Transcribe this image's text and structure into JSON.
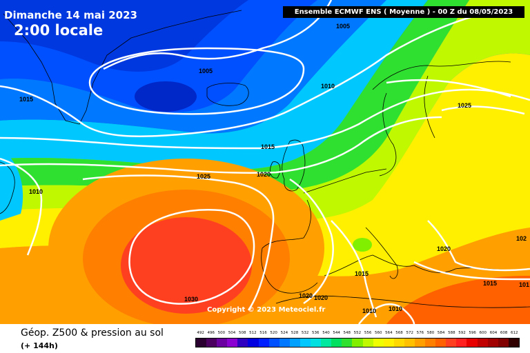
{
  "header": {
    "date_line": "Dimanche 14 mai 2023",
    "time_line": "2:00 locale",
    "model_banner": "Ensemble ECMWF ENS  ( Moyenne )  -  00 Z du 08/05/2023"
  },
  "copyright": "Copyright © 2023 Meteociel.fr",
  "footer": {
    "product_title": "Géop. Z500 & pression au sol",
    "forecast_hour": "(+ 144h)"
  },
  "legend": {
    "labels": [
      "492",
      "496",
      "500",
      "504",
      "508",
      "512",
      "516",
      "520",
      "524",
      "528",
      "532",
      "536",
      "540",
      "544",
      "548",
      "552",
      "556",
      "560",
      "564",
      "568",
      "572",
      "576",
      "580",
      "584",
      "588",
      "592",
      "596",
      "600",
      "604",
      "608",
      "612"
    ],
    "colors": [
      "#2a0030",
      "#4b0060",
      "#6a00a0",
      "#8a00d0",
      "#3000c0",
      "#0000e0",
      "#0020ff",
      "#0050ff",
      "#0078ff",
      "#00a0ff",
      "#00c8ff",
      "#00e0e0",
      "#00e8a0",
      "#00e060",
      "#30e030",
      "#80f000",
      "#c0f800",
      "#f0ff00",
      "#fff000",
      "#ffd800",
      "#ffc000",
      "#ffa000",
      "#ff8000",
      "#ff6000",
      "#ff4020",
      "#ff2020",
      "#e80000",
      "#c00000",
      "#a00000",
      "#800000",
      "#300000"
    ]
  },
  "isobars": [
    {
      "label": "1005"
    },
    {
      "label": "1005"
    },
    {
      "label": "1010"
    },
    {
      "label": "1015"
    },
    {
      "label": "1015"
    },
    {
      "label": "1010"
    },
    {
      "label": "1020"
    },
    {
      "label": "1025"
    },
    {
      "label": "1025"
    },
    {
      "label": "1030"
    },
    {
      "label": "1020"
    },
    {
      "label": "1015"
    },
    {
      "label": "1020"
    },
    {
      "label": "1020"
    },
    {
      "label": "1015"
    },
    {
      "label": "1010"
    },
    {
      "label": "1010"
    },
    {
      "label": "1015"
    },
    {
      "label": "102"
    },
    {
      "label": "101"
    }
  ],
  "colors": {
    "deep_low": "#0038c8",
    "low": "#0078ff",
    "mid_low": "#00c8ff",
    "mid": "#30e030",
    "mid_high": "#f0ff00",
    "high": "#ffa000",
    "very_high": "#ff4020"
  }
}
